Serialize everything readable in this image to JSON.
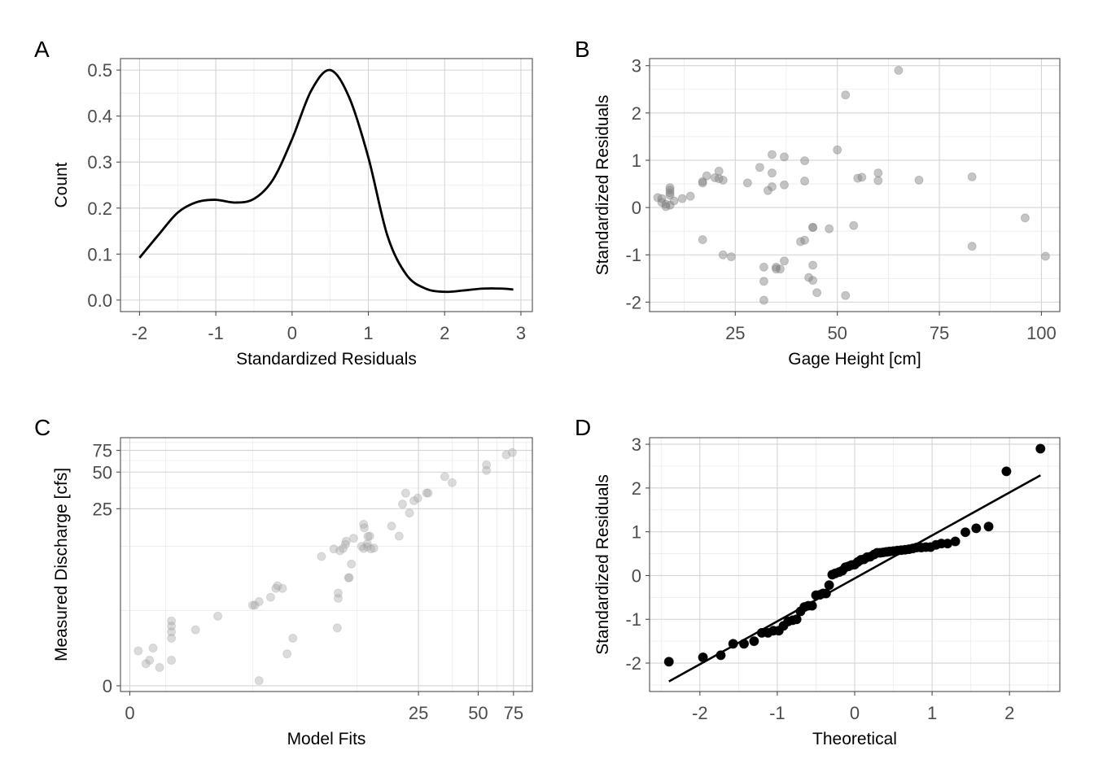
{
  "chart_data": [
    {
      "panel": "A",
      "type": "line",
      "title": "",
      "xlabel": "Standardized Residuals",
      "ylabel": "Count",
      "xlim": [
        -2.25,
        3.15
      ],
      "ylim": [
        -0.025,
        0.525
      ],
      "xticks": [
        -2,
        -1,
        0,
        1,
        2,
        3
      ],
      "xtick_labels": [
        "-2",
        "-1",
        "0",
        "1",
        "2",
        "3"
      ],
      "yticks": [
        0,
        0.1,
        0.2,
        0.3,
        0.4,
        0.5
      ],
      "ytick_labels": [
        "0.0",
        "0.1",
        "0.2",
        "0.3",
        "0.4",
        "0.5"
      ],
      "grid": true,
      "series": [
        {
          "color": "#000000",
          "x": [
            -2.0,
            -1.75,
            -1.5,
            -1.25,
            -1.0,
            -0.75,
            -0.5,
            -0.25,
            0.0,
            0.25,
            0.5,
            0.75,
            1.0,
            1.25,
            1.5,
            1.75,
            2.0,
            2.25,
            2.5,
            2.75,
            2.9
          ],
          "y": [
            0.092,
            0.142,
            0.19,
            0.213,
            0.218,
            0.212,
            0.22,
            0.262,
            0.35,
            0.455,
            0.5,
            0.44,
            0.31,
            0.14,
            0.055,
            0.025,
            0.018,
            0.021,
            0.025,
            0.025,
            0.023
          ]
        }
      ]
    },
    {
      "panel": "B",
      "type": "scatter",
      "title": "",
      "xlabel": "Gage Height [cm]",
      "ylabel": "Standardized Residuals",
      "xlim": [
        4,
        104.5
      ],
      "ylim": [
        -2.2,
        3.15
      ],
      "xticks": [
        25,
        50,
        75,
        100
      ],
      "xtick_labels": [
        "25",
        "50",
        "75",
        "100"
      ],
      "yticks": [
        -2,
        -1,
        0,
        1,
        2,
        3
      ],
      "ytick_labels": [
        "-2",
        "-1",
        "0",
        "1",
        "2",
        "3"
      ],
      "grid": true,
      "point_color": "#7f7f7f",
      "point_alpha": 0.45,
      "points": [
        [
          65,
          2.9
        ],
        [
          52,
          2.38
        ],
        [
          50,
          1.22
        ],
        [
          34,
          1.12
        ],
        [
          37,
          1.07
        ],
        [
          42,
          0.99
        ],
        [
          31,
          0.85
        ],
        [
          21,
          0.77
        ],
        [
          34,
          0.73
        ],
        [
          60,
          0.73
        ],
        [
          55,
          0.62
        ],
        [
          56,
          0.64
        ],
        [
          83,
          0.65
        ],
        [
          18,
          0.67
        ],
        [
          20,
          0.63
        ],
        [
          21,
          0.61
        ],
        [
          22,
          0.58
        ],
        [
          60,
          0.57
        ],
        [
          70,
          0.58
        ],
        [
          42,
          0.56
        ],
        [
          17,
          0.55
        ],
        [
          17,
          0.52
        ],
        [
          28,
          0.52
        ],
        [
          37,
          0.48
        ],
        [
          34,
          0.44
        ],
        [
          33,
          0.36
        ],
        [
          9,
          0.42
        ],
        [
          9,
          0.37
        ],
        [
          9,
          0.31
        ],
        [
          9,
          0.26
        ],
        [
          14,
          0.24
        ],
        [
          12,
          0.19
        ],
        [
          6,
          0.21
        ],
        [
          7,
          0.19
        ],
        [
          10,
          0.14
        ],
        [
          7,
          0.11
        ],
        [
          8,
          0.07
        ],
        [
          9,
          0.05
        ],
        [
          8,
          0.02
        ],
        [
          96,
          -0.22
        ],
        [
          54,
          -0.38
        ],
        [
          44,
          -0.42
        ],
        [
          44,
          -0.42
        ],
        [
          48,
          -0.45
        ],
        [
          42,
          -0.69
        ],
        [
          41,
          -0.72
        ],
        [
          17,
          -0.68
        ],
        [
          83,
          -0.82
        ],
        [
          22,
          -1.0
        ],
        [
          24,
          -1.04
        ],
        [
          101,
          -1.03
        ],
        [
          37,
          -1.13
        ],
        [
          44,
          -1.22
        ],
        [
          32,
          -1.26
        ],
        [
          35,
          -1.26
        ],
        [
          36,
          -1.3
        ],
        [
          35,
          -1.3
        ],
        [
          43,
          -1.48
        ],
        [
          44,
          -1.54
        ],
        [
          32,
          -1.56
        ],
        [
          45,
          -1.8
        ],
        [
          52,
          -1.86
        ],
        [
          32,
          -1.96
        ]
      ]
    },
    {
      "panel": "C",
      "type": "scatter",
      "title": "",
      "xlabel": "Model Fits",
      "ylabel": "Measured Discharge [cfs]",
      "scale": "log1p",
      "xlim": [
        -0.1,
        93
      ],
      "ylim": [
        -0.1,
        95
      ],
      "xticks": [
        0,
        25,
        50,
        75
      ],
      "xtick_labels": [
        "0",
        "25",
        "50",
        "75"
      ],
      "yticks": [
        0,
        25,
        50,
        75
      ],
      "ytick_labels": [
        "0",
        "25",
        "50",
        "75"
      ],
      "grid": true,
      "point_color": "#a6a6a6",
      "point_alpha": 0.4,
      "points": [
        [
          0.1,
          0.9
        ],
        [
          0.2,
          0.5
        ],
        [
          0.25,
          0.6
        ],
        [
          0.3,
          1.0
        ],
        [
          0.4,
          0.4
        ],
        [
          0.6,
          0.6
        ],
        [
          0.6,
          1.7
        ],
        [
          0.6,
          2.0
        ],
        [
          0.6,
          2.3
        ],
        [
          0.6,
          1.4
        ],
        [
          1.1,
          1.8
        ],
        [
          1.7,
          2.6
        ],
        [
          3.0,
          3.4
        ],
        [
          3.1,
          3.4
        ],
        [
          3.3,
          3.7
        ],
        [
          3.3,
          0.1
        ],
        [
          3.9,
          4.1
        ],
        [
          4.2,
          5.0
        ],
        [
          4.3,
          5.3
        ],
        [
          4.6,
          5.0
        ],
        [
          4.9,
          0.8
        ],
        [
          5.3,
          1.4
        ],
        [
          7.7,
          9.8
        ],
        [
          9.0,
          11.4
        ],
        [
          9.4,
          1.9
        ],
        [
          9.5,
          4.0
        ],
        [
          9.5,
          4.5
        ],
        [
          9.7,
          11.0
        ],
        [
          10.1,
          11.5
        ],
        [
          10.4,
          12.5
        ],
        [
          10.5,
          13.3
        ],
        [
          10.8,
          6.3
        ],
        [
          10.9,
          6.3
        ],
        [
          11.2,
          8.4
        ],
        [
          11.5,
          14.1
        ],
        [
          12.7,
          12.0
        ],
        [
          13.0,
          18.5
        ],
        [
          13.0,
          11.5
        ],
        [
          13.1,
          17.3
        ],
        [
          13.6,
          11.9
        ],
        [
          13.6,
          12.6
        ],
        [
          13.7,
          14.6
        ],
        [
          14.0,
          14.7
        ],
        [
          14.2,
          11.4
        ],
        [
          14.7,
          11.6
        ],
        [
          18.2,
          17.9
        ],
        [
          19.9,
          14.7
        ],
        [
          20.7,
          27.3
        ],
        [
          21.5,
          33.6
        ],
        [
          22.5,
          23.0
        ],
        [
          23.7,
          29.1
        ],
        [
          24.8,
          30.6
        ],
        [
          27.5,
          33.7
        ],
        [
          28.0,
          33.7
        ],
        [
          34.0,
          45.9
        ],
        [
          37.0,
          40.9
        ],
        [
          55.0,
          51.6
        ],
        [
          55.0,
          57.2
        ],
        [
          69.0,
          69.0
        ],
        [
          74.0,
          72.0
        ]
      ]
    },
    {
      "panel": "D",
      "type": "scatter",
      "title": "",
      "xlabel": "Theoretical",
      "ylabel": "Standardized Residuals",
      "xlim": [
        -2.65,
        2.65
      ],
      "ylim": [
        -2.65,
        3.15
      ],
      "xticks": [
        -2,
        -1,
        0,
        1,
        2
      ],
      "xtick_labels": [
        "-2",
        "-1",
        "0",
        "1",
        "2"
      ],
      "yticks": [
        -2,
        -1,
        0,
        1,
        2,
        3
      ],
      "ytick_labels": [
        "-2",
        "-1",
        "0",
        "1",
        "2",
        "3"
      ],
      "grid": true,
      "point_color": "#000000",
      "reference_line": {
        "x": [
          -2.4,
          2.4
        ],
        "y": [
          -2.42,
          2.29
        ]
      },
      "points": [
        [
          -2.4,
          -1.97
        ],
        [
          -1.96,
          -1.87
        ],
        [
          -1.73,
          -1.82
        ],
        [
          -1.57,
          -1.56
        ],
        [
          -1.43,
          -1.56
        ],
        [
          -1.3,
          -1.5
        ],
        [
          -1.2,
          -1.31
        ],
        [
          -1.12,
          -1.31
        ],
        [
          -1.05,
          -1.26
        ],
        [
          -0.98,
          -1.26
        ],
        [
          -0.92,
          -1.15
        ],
        [
          -0.86,
          -1.05
        ],
        [
          -0.8,
          -1.02
        ],
        [
          -0.75,
          -1.0
        ],
        [
          -0.7,
          -0.82
        ],
        [
          -0.65,
          -0.72
        ],
        [
          -0.6,
          -0.69
        ],
        [
          -0.55,
          -0.69
        ],
        [
          -0.5,
          -0.45
        ],
        [
          -0.45,
          -0.44
        ],
        [
          -0.41,
          -0.41
        ],
        [
          -0.37,
          -0.41
        ],
        [
          -0.33,
          -0.22
        ],
        [
          -0.29,
          0.02
        ],
        [
          -0.25,
          0.05
        ],
        [
          -0.2,
          0.08
        ],
        [
          -0.16,
          0.11
        ],
        [
          -0.12,
          0.19
        ],
        [
          -0.08,
          0.21
        ],
        [
          -0.04,
          0.24
        ],
        [
          0.0,
          0.25
        ],
        [
          0.04,
          0.31
        ],
        [
          0.08,
          0.36
        ],
        [
          0.12,
          0.37
        ],
        [
          0.16,
          0.42
        ],
        [
          0.2,
          0.43
        ],
        [
          0.25,
          0.48
        ],
        [
          0.29,
          0.52
        ],
        [
          0.33,
          0.52
        ],
        [
          0.37,
          0.53
        ],
        [
          0.41,
          0.54
        ],
        [
          0.45,
          0.55
        ],
        [
          0.5,
          0.56
        ],
        [
          0.55,
          0.57
        ],
        [
          0.6,
          0.58
        ],
        [
          0.65,
          0.59
        ],
        [
          0.7,
          0.6
        ],
        [
          0.75,
          0.62
        ],
        [
          0.8,
          0.64
        ],
        [
          0.86,
          0.64
        ],
        [
          0.92,
          0.65
        ],
        [
          0.98,
          0.65
        ],
        [
          1.05,
          0.7
        ],
        [
          1.12,
          0.73
        ],
        [
          1.2,
          0.73
        ],
        [
          1.3,
          0.78
        ],
        [
          1.43,
          0.99
        ],
        [
          1.57,
          1.08
        ],
        [
          1.73,
          1.12
        ],
        [
          1.96,
          2.38
        ],
        [
          2.4,
          2.9
        ]
      ]
    }
  ],
  "panel_labels": [
    "A",
    "B",
    "C",
    "D"
  ]
}
